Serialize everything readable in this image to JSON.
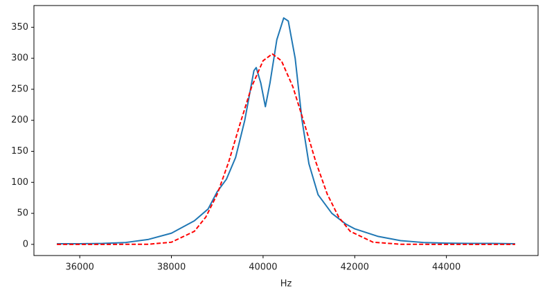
{
  "chart_data": {
    "type": "line",
    "xlabel": "Hz",
    "xlim": [
      35000,
      46000
    ],
    "ylim": [
      -18,
      385
    ],
    "xticks": [
      36000,
      38000,
      40000,
      42000,
      44000
    ],
    "yticks": [
      0,
      50,
      100,
      150,
      200,
      250,
      300,
      350
    ],
    "grid": false,
    "series": [
      {
        "color": "#1f77b4",
        "dash": "solid",
        "x": [
          35500,
          36000,
          36500,
          37000,
          37500,
          38000,
          38500,
          38800,
          39000,
          39200,
          39400,
          39600,
          39800,
          39850,
          39950,
          40050,
          40150,
          40300,
          40450,
          40550,
          40700,
          40850,
          41000,
          41200,
          41500,
          41800,
          42000,
          42500,
          43000,
          43500,
          44000,
          44500,
          45000,
          45500
        ],
        "values": [
          1,
          1,
          1.5,
          3,
          8,
          18,
          38,
          57,
          85,
          105,
          140,
          200,
          280,
          285,
          260,
          222,
          260,
          330,
          365,
          360,
          300,
          200,
          130,
          80,
          50,
          33,
          25,
          13,
          6,
          3,
          2,
          1.5,
          1.5,
          1
        ]
      },
      {
        "color": "#ff0000",
        "dash": "dashed",
        "x": [
          35500,
          36500,
          37500,
          38000,
          38500,
          38750,
          39000,
          39250,
          39500,
          39750,
          40000,
          40200,
          40400,
          40650,
          40900,
          41150,
          41400,
          41650,
          41900,
          42400,
          43000,
          44000,
          45500
        ],
        "values": [
          0,
          0,
          0.2,
          3.5,
          21,
          44,
          81,
          133,
          195,
          254,
          296,
          307,
          296,
          254,
          195,
          133,
          81,
          44,
          21,
          3.5,
          0.2,
          0,
          0
        ]
      }
    ]
  }
}
